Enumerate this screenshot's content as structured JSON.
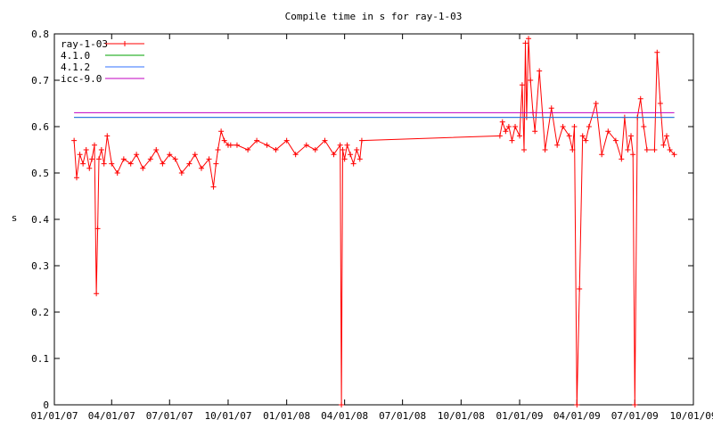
{
  "chart_data": {
    "type": "line",
    "title": "Compile time in s for ray-1-03",
    "xlabel": "",
    "ylabel": "s",
    "xlim": [
      "2007-01-01",
      "2009-10-01"
    ],
    "ylim": [
      0,
      0.8
    ],
    "grid": false,
    "legend_position": "top-left",
    "x_ticks": [
      "01/01/07",
      "04/01/07",
      "07/01/07",
      "10/01/07",
      "01/01/08",
      "04/01/08",
      "07/01/08",
      "10/01/08",
      "01/01/09",
      "04/01/09",
      "07/01/09",
      "10/01/09"
    ],
    "y_ticks": [
      "0",
      "0.1",
      "0.2",
      "0.3",
      "0.4",
      "0.5",
      "0.6",
      "0.7",
      "0.8"
    ],
    "series": [
      {
        "name": "ray-1-03",
        "color": "#ff0000",
        "marker": "plus",
        "x": [
          "2007-02-01",
          "2007-02-05",
          "2007-02-10",
          "2007-02-15",
          "2007-02-20",
          "2007-02-25",
          "2007-03-01",
          "2007-03-05",
          "2007-03-08",
          "2007-03-10",
          "2007-03-12",
          "2007-03-16",
          "2007-03-20",
          "2007-03-25",
          "2007-04-01",
          "2007-04-10",
          "2007-04-20",
          "2007-05-01",
          "2007-05-10",
          "2007-05-20",
          "2007-06-01",
          "2007-06-10",
          "2007-06-20",
          "2007-07-01",
          "2007-07-10",
          "2007-07-20",
          "2007-08-01",
          "2007-08-10",
          "2007-08-20",
          "2007-09-01",
          "2007-09-08",
          "2007-09-12",
          "2007-09-15",
          "2007-09-20",
          "2007-09-25",
          "2007-10-01",
          "2007-10-05",
          "2007-10-15",
          "2007-11-01",
          "2007-11-15",
          "2007-12-01",
          "2007-12-15",
          "2008-01-01",
          "2008-01-15",
          "2008-02-01",
          "2008-02-15",
          "2008-03-01",
          "2008-03-15",
          "2008-03-25",
          "2008-03-27",
          "2008-03-29",
          "2008-04-01",
          "2008-04-05",
          "2008-04-10",
          "2008-04-15",
          "2008-04-20",
          "2008-04-25",
          "2008-04-28",
          "2008-12-01",
          "2008-12-05",
          "2008-12-10",
          "2008-12-15",
          "2008-12-20",
          "2008-12-25",
          "2009-01-01",
          "2009-01-05",
          "2009-01-08",
          "2009-01-10",
          "2009-01-12",
          "2009-01-15",
          "2009-01-18",
          "2009-01-22",
          "2009-01-25",
          "2009-02-01",
          "2009-02-10",
          "2009-02-20",
          "2009-03-01",
          "2009-03-10",
          "2009-03-20",
          "2009-03-25",
          "2009-03-28",
          "2009-04-01",
          "2009-04-05",
          "2009-04-10",
          "2009-04-15",
          "2009-04-20",
          "2009-05-01",
          "2009-05-10",
          "2009-05-20",
          "2009-06-01",
          "2009-06-10",
          "2009-06-15",
          "2009-06-20",
          "2009-06-25",
          "2009-06-28",
          "2009-07-01",
          "2009-07-05",
          "2009-07-10",
          "2009-07-15",
          "2009-07-20",
          "2009-08-01",
          "2009-08-05",
          "2009-08-10",
          "2009-08-15",
          "2009-08-20",
          "2009-08-25",
          "2009-09-01"
        ],
        "y": [
          0.57,
          0.49,
          0.54,
          0.52,
          0.55,
          0.51,
          0.53,
          0.56,
          0.24,
          0.38,
          0.53,
          0.55,
          0.52,
          0.58,
          0.52,
          0.5,
          0.53,
          0.52,
          0.54,
          0.51,
          0.53,
          0.55,
          0.52,
          0.54,
          0.53,
          0.5,
          0.52,
          0.54,
          0.51,
          0.53,
          0.47,
          0.52,
          0.55,
          0.59,
          0.57,
          0.56,
          0.56,
          0.56,
          0.55,
          0.57,
          0.56,
          0.55,
          0.57,
          0.54,
          0.56,
          0.55,
          0.57,
          0.54,
          0.56,
          0.0,
          0.55,
          0.53,
          0.56,
          0.54,
          0.52,
          0.55,
          0.53,
          0.57,
          0.58,
          0.61,
          0.59,
          0.6,
          0.57,
          0.6,
          0.58,
          0.69,
          0.55,
          0.78,
          0.62,
          0.79,
          0.7,
          0.63,
          0.59,
          0.72,
          0.55,
          0.64,
          0.56,
          0.6,
          0.58,
          0.55,
          0.6,
          0.0,
          0.25,
          0.58,
          0.57,
          0.6,
          0.65,
          0.54,
          0.59,
          0.57,
          0.53,
          0.62,
          0.55,
          0.58,
          0.54,
          0.0,
          0.62,
          0.66,
          0.6,
          0.55,
          0.55,
          0.76,
          0.65,
          0.56,
          0.58,
          0.55,
          0.54
        ]
      },
      {
        "name": "4.1.0",
        "color": "#00a000",
        "x": [
          "2007-02-01",
          "2009-09-01"
        ],
        "y": [
          0.62,
          0.62
        ]
      },
      {
        "name": "4.1.2",
        "color": "#3070ff",
        "x": [
          "2007-02-01",
          "2009-09-01"
        ],
        "y": [
          0.62,
          0.62
        ]
      },
      {
        "name": "icc-9.0",
        "color": "#c000c0",
        "x": [
          "2007-02-01",
          "2009-09-01"
        ],
        "y": [
          0.63,
          0.63
        ]
      }
    ]
  }
}
